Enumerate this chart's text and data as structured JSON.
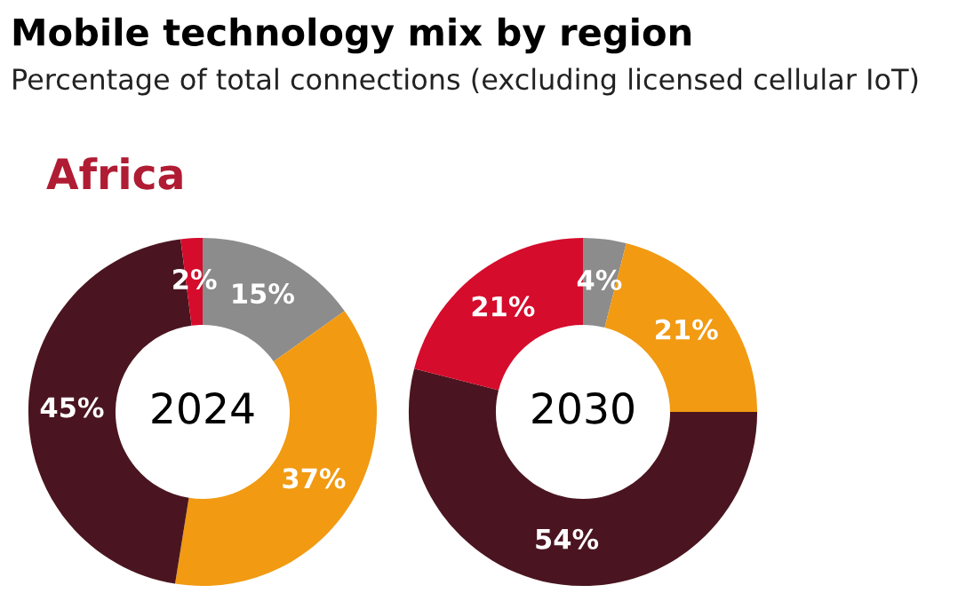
{
  "chart_data": [
    {
      "type": "donut",
      "title": "2024",
      "categories": [
        null,
        null,
        null,
        null
      ],
      "values": [
        15,
        37,
        45,
        2
      ],
      "colors": [
        "#8c8c8c",
        "#f19a12",
        "#4a1520",
        "#d50c2c"
      ],
      "value_labels": [
        "15%",
        "37%",
        "45%",
        "2%"
      ],
      "annotations": [
        "Mobile technology mix by region",
        "Percentage of total connections (excluding licensed cellular IoT)",
        "Africa"
      ]
    },
    {
      "type": "donut",
      "title": "2030",
      "categories": [
        null,
        null,
        null,
        null
      ],
      "values": [
        4,
        21,
        54,
        21
      ],
      "colors": [
        "#8c8c8c",
        "#f19a12",
        "#4a1520",
        "#d50c2c"
      ],
      "value_labels": [
        "4%",
        "21%",
        "54%",
        "21%"
      ]
    }
  ]
}
